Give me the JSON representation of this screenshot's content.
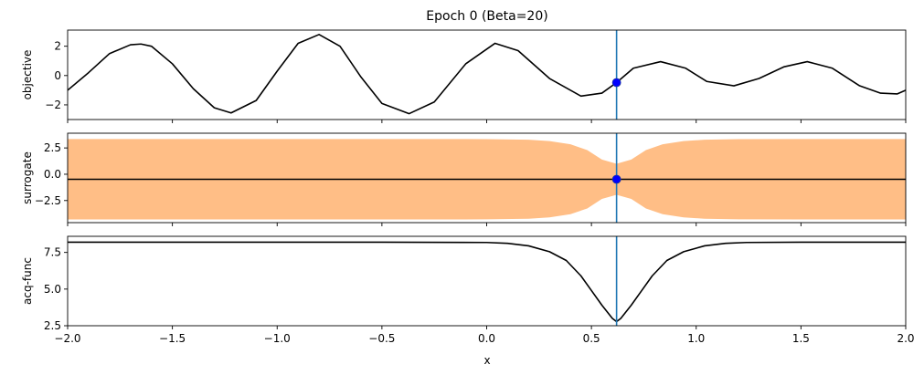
{
  "figure": {
    "title": "Epoch 0 (Beta=20)",
    "xlabel": "x"
  },
  "colors": {
    "curve": "#000000",
    "vline": "#1f77b4",
    "point": "#0000ff",
    "band": "#ffbe86"
  },
  "chart_data": [
    {
      "type": "line",
      "ylabel": "objective",
      "xlim": [
        -2.0,
        2.0
      ],
      "ylim": [
        -3.0,
        3.1
      ],
      "yticks": [
        2,
        0,
        -2
      ],
      "ytick_labels": [
        "2",
        "0",
        "−2"
      ],
      "series": [
        {
          "x": [
            -2.0,
            -1.9,
            -1.8,
            -1.7,
            -1.65,
            -1.6,
            -1.5,
            -1.4,
            -1.3,
            -1.22,
            -1.1,
            -1.0,
            -0.9,
            -0.8,
            -0.7,
            -0.6,
            -0.5,
            -0.37,
            -0.25,
            -0.1,
            0.04,
            0.15,
            0.3,
            0.45,
            0.55,
            0.62,
            0.7,
            0.83,
            0.95,
            1.05,
            1.18,
            1.3,
            1.42,
            1.53,
            1.65,
            1.78,
            1.88,
            1.96,
            2.0
          ],
          "y": [
            -1.0,
            0.2,
            1.5,
            2.1,
            2.15,
            2.0,
            0.8,
            -0.9,
            -2.2,
            -2.55,
            -1.7,
            0.3,
            2.2,
            2.8,
            2.0,
            -0.1,
            -1.9,
            -2.6,
            -1.8,
            0.8,
            2.2,
            1.7,
            -0.2,
            -1.4,
            -1.2,
            -0.48,
            0.5,
            0.95,
            0.5,
            -0.4,
            -0.7,
            -0.2,
            0.6,
            0.95,
            0.5,
            -0.7,
            -1.2,
            -1.25,
            -1.0
          ]
        }
      ],
      "points": [
        {
          "x": 0.62,
          "y": -0.48
        }
      ],
      "vline_x": 0.62
    },
    {
      "type": "area",
      "ylabel": "surrogate",
      "xlim": [
        -2.0,
        2.0
      ],
      "ylim": [
        -4.6,
        3.9
      ],
      "yticks": [
        2.5,
        0.0,
        -2.5
      ],
      "ytick_labels": [
        "2.5",
        "0.0",
        "−2.5"
      ],
      "band": {
        "x": [
          -2.0,
          -1.5,
          -1.0,
          -0.5,
          0.0,
          0.2,
          0.3,
          0.4,
          0.48,
          0.55,
          0.62,
          0.69,
          0.76,
          0.84,
          0.94,
          1.04,
          1.2,
          1.5,
          2.0
        ],
        "upper": [
          3.35,
          3.35,
          3.35,
          3.35,
          3.34,
          3.28,
          3.15,
          2.85,
          2.3,
          1.4,
          1.0,
          1.4,
          2.3,
          2.85,
          3.15,
          3.28,
          3.34,
          3.35,
          3.35
        ],
        "lower": [
          -4.3,
          -4.3,
          -4.3,
          -4.3,
          -4.29,
          -4.23,
          -4.1,
          -3.8,
          -3.25,
          -2.35,
          -1.95,
          -2.35,
          -3.25,
          -3.8,
          -4.1,
          -4.23,
          -4.29,
          -4.3,
          -4.3
        ]
      },
      "series": [
        {
          "x": [
            -2.0,
            2.0
          ],
          "y": [
            -0.48,
            -0.48
          ]
        }
      ],
      "points": [
        {
          "x": 0.62,
          "y": -0.48
        }
      ],
      "vline_x": 0.62
    },
    {
      "type": "line",
      "ylabel": "acq-func",
      "xlim": [
        -2.0,
        2.0
      ],
      "ylim": [
        2.5,
        8.6
      ],
      "yticks": [
        7.5,
        5.0,
        2.5
      ],
      "ytick_labels": [
        "7.5",
        "5.0",
        "2.5"
      ],
      "xticks": [
        -2.0,
        -1.5,
        -1.0,
        -0.5,
        0.0,
        0.5,
        1.0,
        1.5,
        2.0
      ],
      "xtick_labels": [
        "−2.0",
        "−1.5",
        "−1.0",
        "−0.5",
        "0.0",
        "0.5",
        "1.0",
        "1.5",
        "2.0"
      ],
      "series": [
        {
          "x": [
            -2.0,
            -1.0,
            -0.5,
            0.0,
            0.1,
            0.2,
            0.3,
            0.38,
            0.45,
            0.5,
            0.55,
            0.6,
            0.62,
            0.64,
            0.69,
            0.74,
            0.79,
            0.86,
            0.94,
            1.04,
            1.14,
            1.24,
            1.5,
            2.0
          ],
          "y": [
            8.2,
            8.2,
            8.2,
            8.18,
            8.12,
            7.95,
            7.55,
            6.95,
            5.9,
            4.9,
            3.9,
            3.0,
            2.78,
            3.0,
            3.9,
            4.9,
            5.9,
            6.95,
            7.55,
            7.95,
            8.12,
            8.18,
            8.2,
            8.2
          ]
        }
      ],
      "vline_x": 0.62
    }
  ]
}
